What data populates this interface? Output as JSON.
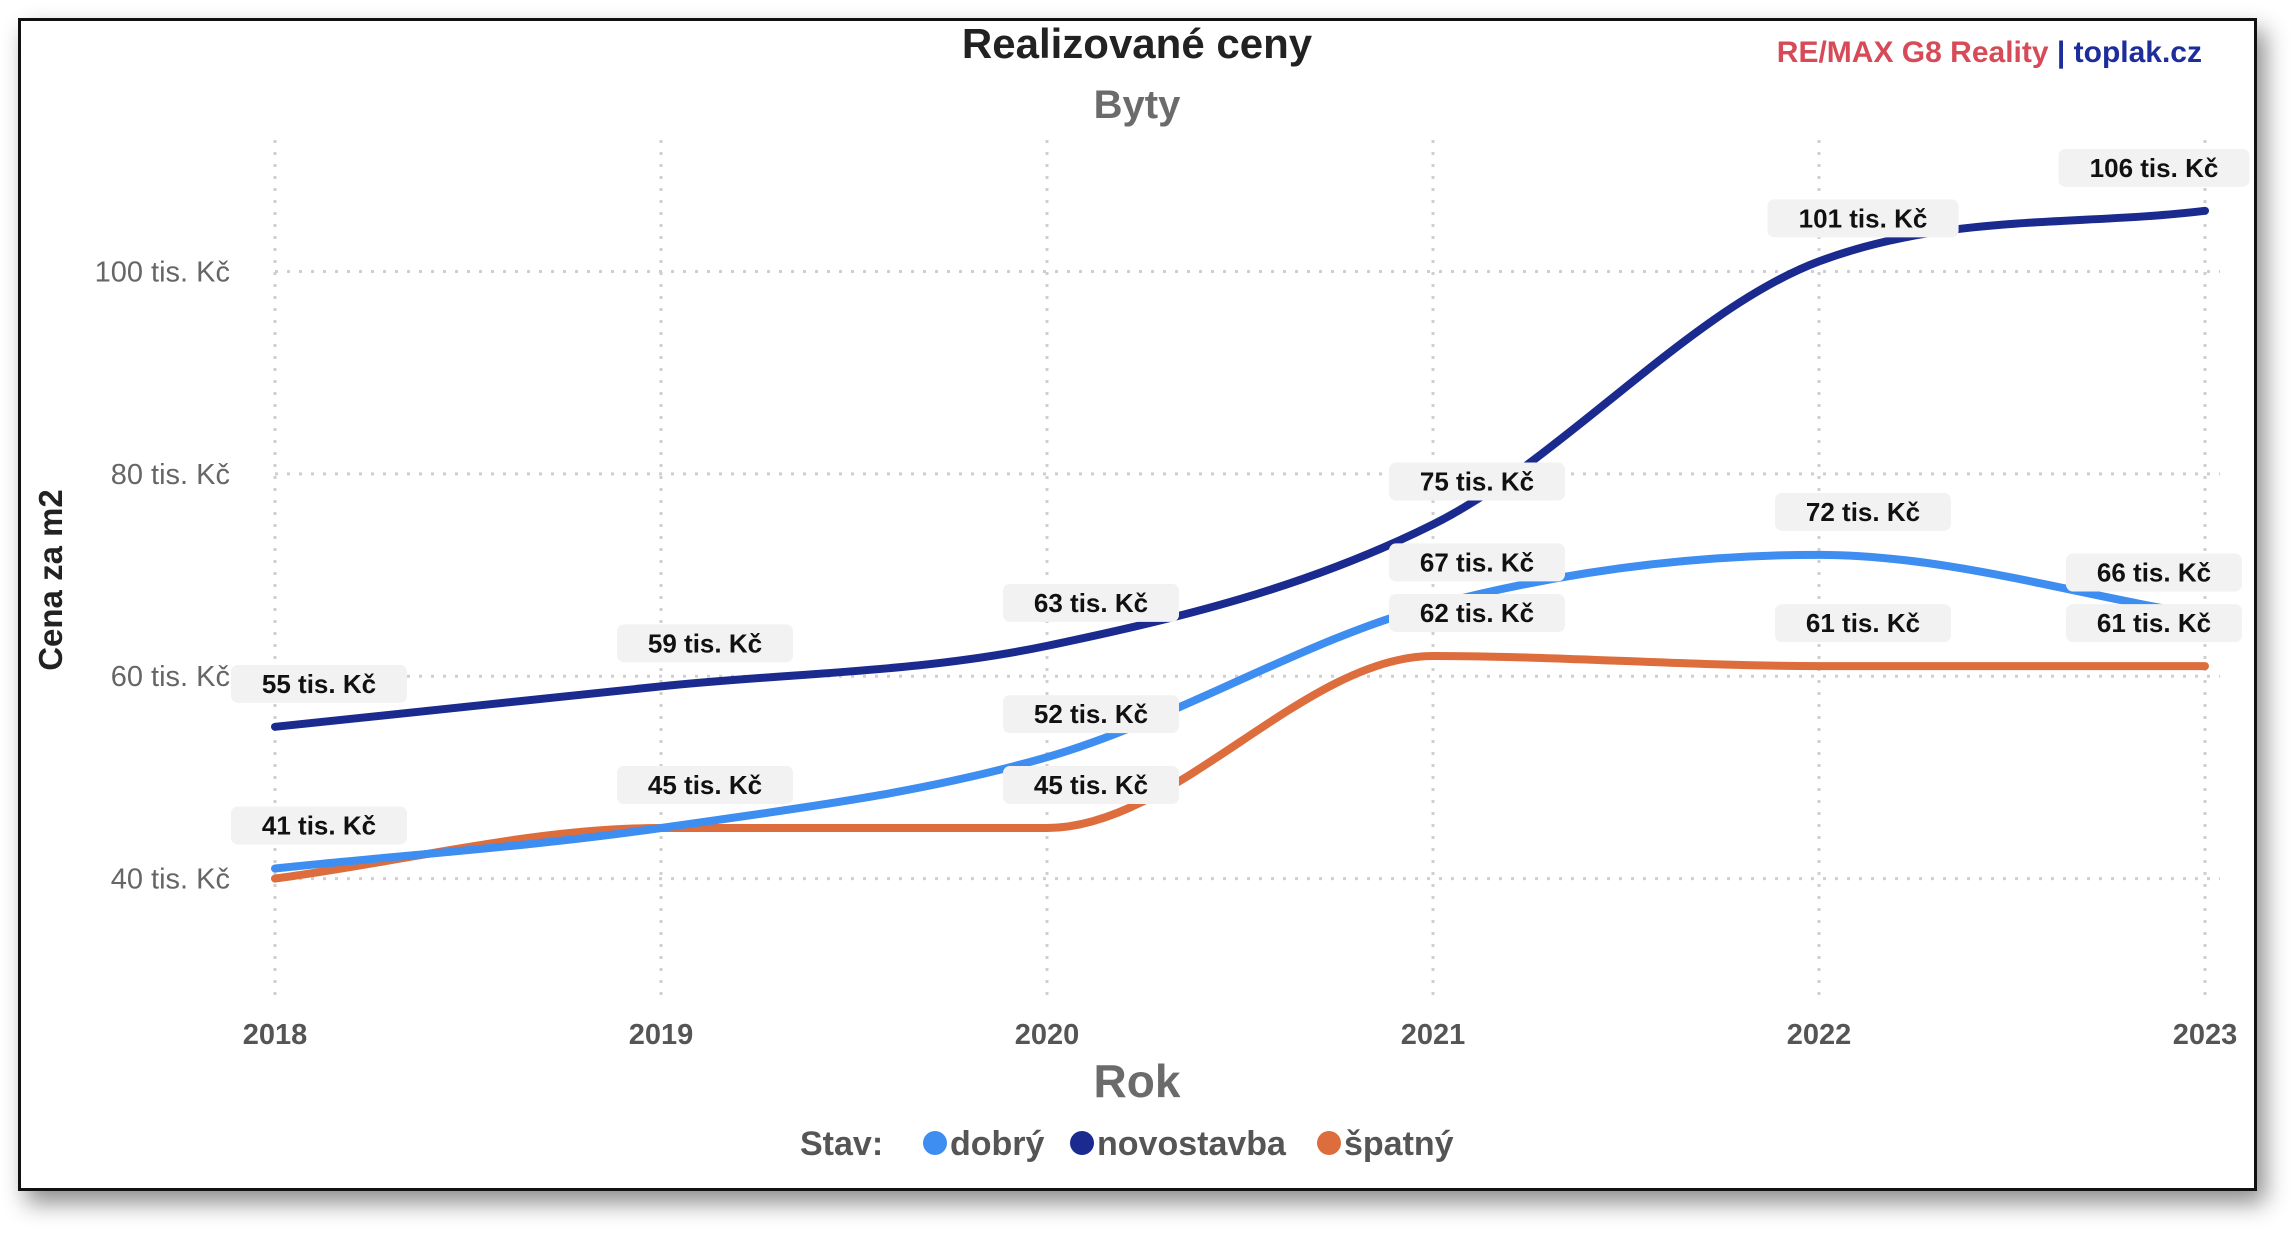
{
  "chart_data": {
    "type": "line",
    "title": "Realizované ceny",
    "subtitle": "Byty",
    "brand": {
      "part1": "RE/MAX G8 Reality",
      "separator": " | ",
      "part2": "toplak.cz",
      "color1": "#d64b57",
      "color2": "#1d2d9c"
    },
    "xlabel": "Rok",
    "ylabel": "Cena za m2",
    "x": [
      "2018",
      "2019",
      "2020",
      "2021",
      "2022",
      "2023"
    ],
    "yticks": [
      {
        "value": 40,
        "label": "40 tis. Kč"
      },
      {
        "value": 60,
        "label": "60 tis. Kč"
      },
      {
        "value": 80,
        "label": "80 tis. Kč"
      },
      {
        "value": 100,
        "label": "100 tis. Kč"
      }
    ],
    "ylim": [
      28,
      113
    ],
    "grid": true,
    "legend": {
      "title": "Stav:",
      "position": "bottom"
    },
    "series": [
      {
        "name": "dobrý",
        "color": "#3d8ef0",
        "values": [
          41,
          45,
          52,
          67,
          72,
          66
        ],
        "labels": [
          "41 tis. Kč",
          "45 tis. Kč",
          "52 tis. Kč",
          "67 tis. Kč",
          "72 tis. Kč",
          "66 tis. Kč"
        ]
      },
      {
        "name": "novostavba",
        "color": "#1a2a8f",
        "values": [
          55,
          59,
          63,
          75,
          101,
          106
        ],
        "labels": [
          "55 tis. Kč",
          "59 tis. Kč",
          "63 tis. Kč",
          "75 tis. Kč",
          "101 tis. Kč",
          "106 tis. Kč"
        ]
      },
      {
        "name": "špatný",
        "color": "#dd6d3c",
        "values": [
          40,
          45,
          45,
          62,
          61,
          61
        ],
        "labels": [
          "",
          "",
          "45 tis. Kč",
          "62 tis. Kč",
          "61 tis. Kč",
          "61 tis. Kč"
        ]
      }
    ],
    "extra_labels": [
      "41 tis. Kč",
      "45 tis. Kč"
    ]
  }
}
